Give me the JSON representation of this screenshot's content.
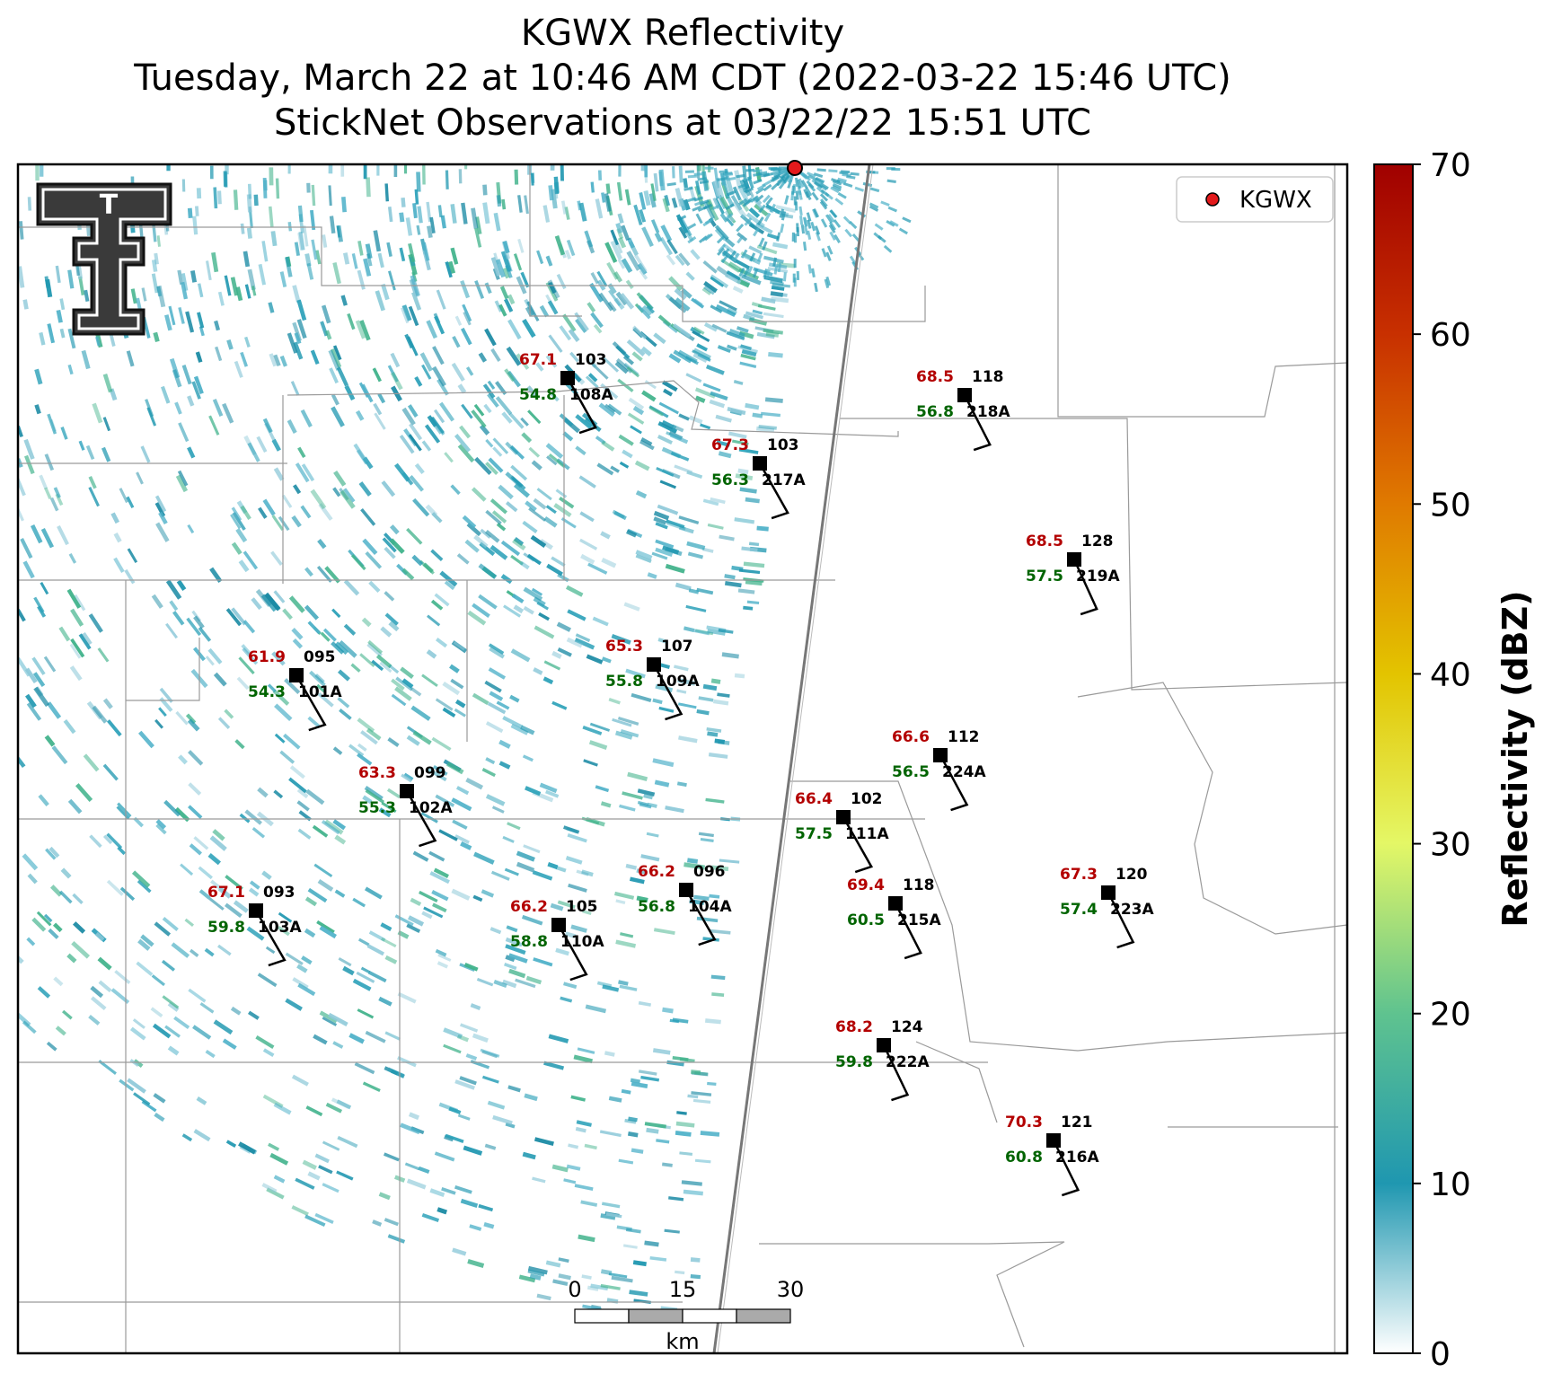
{
  "title": {
    "line1": "KGWX Reflectivity",
    "line2": "Tuesday, March 22 at 10:46 AM CDT (2022-03-22 15:46 UTC)",
    "line3": "StickNet Observations at 03/22/22 15:51 UTC"
  },
  "legend": {
    "radar_label": "KGWX",
    "marker_color": "#e31a1c"
  },
  "logo": {
    "icon": "texas-tech-double-t-logo",
    "text": "T"
  },
  "colorbar": {
    "label": "Reflectivity (dBZ)",
    "ticks": [
      "0",
      "10",
      "20",
      "30",
      "40",
      "50",
      "60",
      "70"
    ],
    "min": 0,
    "max": 70,
    "colors": [
      "#ffffff",
      "#1f97b0",
      "#5fc38f",
      "#e4f766",
      "#e3c400",
      "#e07a00",
      "#c83000",
      "#a00000"
    ]
  },
  "scale_bar": {
    "ticks": [
      "0",
      "15",
      "30"
    ],
    "unit": "km"
  },
  "stations": [
    {
      "id": "108A",
      "temp": "67.1",
      "dew": "54.8",
      "dir": "103"
    },
    {
      "id": "217A",
      "temp": "67.3",
      "dew": "56.3",
      "dir": "103"
    },
    {
      "id": "218A",
      "temp": "68.5",
      "dew": "56.8",
      "dir": "118"
    },
    {
      "id": "219A",
      "temp": "68.5",
      "dew": "57.5",
      "dir": "128"
    },
    {
      "id": "101A",
      "temp": "61.9",
      "dew": "54.3",
      "dir": "095"
    },
    {
      "id": "109A",
      "temp": "65.3",
      "dew": "55.8",
      "dir": "107"
    },
    {
      "id": "224A",
      "temp": "66.6",
      "dew": "56.5",
      "dir": "112"
    },
    {
      "id": "102A",
      "temp": "63.3",
      "dew": "55.3",
      "dir": "099"
    },
    {
      "id": "111A",
      "temp": "66.4",
      "dew": "57.5",
      "dir": "102"
    },
    {
      "id": "103A",
      "temp": "67.1",
      "dew": "59.8",
      "dir": "093"
    },
    {
      "id": "104A",
      "temp": "66.2",
      "dew": "56.8",
      "dir": "096"
    },
    {
      "id": "110A",
      "temp": "66.2",
      "dew": "58.8",
      "dir": "105"
    },
    {
      "id": "215A",
      "temp": "69.4",
      "dew": "60.5",
      "dir": "118"
    },
    {
      "id": "223A",
      "temp": "67.3",
      "dew": "57.4",
      "dir": "120"
    },
    {
      "id": "222A",
      "temp": "68.2",
      "dew": "59.8",
      "dir": "124"
    },
    {
      "id": "216A",
      "temp": "70.3",
      "dew": "60.8",
      "dir": "121"
    }
  ]
}
